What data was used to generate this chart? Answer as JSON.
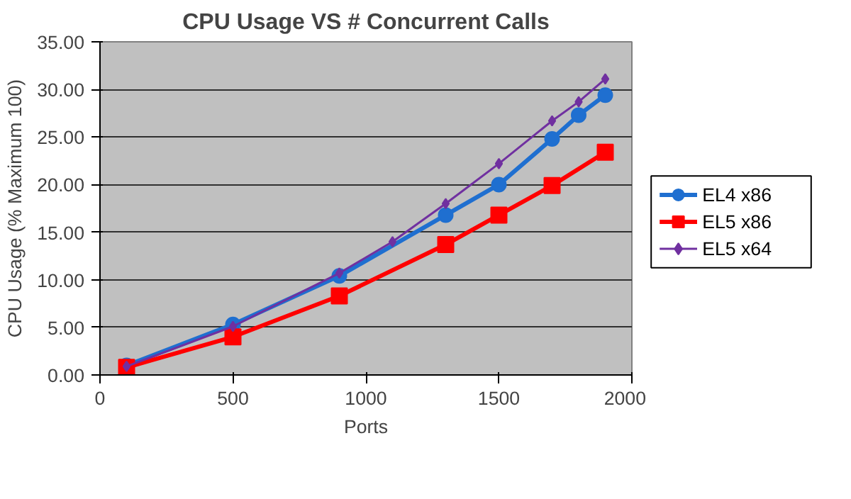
{
  "chart_data": {
    "type": "line",
    "title": "CPU Usage VS # Concurrent Calls",
    "xlabel": "Ports",
    "ylabel": "CPU Usage (% Maximum 100)",
    "xlim": [
      0,
      2000
    ],
    "xticks": [
      0,
      500,
      1000,
      1500,
      2000
    ],
    "ylim": [
      0,
      35
    ],
    "yticks": [
      {
        "value": 0,
        "label": "0.00"
      },
      {
        "value": 5,
        "label": "5.00"
      },
      {
        "value": 10,
        "label": "10.00"
      },
      {
        "value": 15,
        "label": "15.00"
      },
      {
        "value": 20,
        "label": "20.00"
      },
      {
        "value": 25,
        "label": "25.00"
      },
      {
        "value": 30,
        "label": "30.00"
      },
      {
        "value": 35,
        "label": "35.00"
      }
    ],
    "grid": "y",
    "legend": "right",
    "series": [
      {
        "name": "EL4 x86",
        "color": "#1f6fd0",
        "marker": "circle",
        "x": [
          100,
          500,
          900,
          1300,
          1500,
          1700,
          1800,
          1900
        ],
        "values": [
          1.0,
          5.3,
          10.4,
          16.8,
          20.0,
          24.8,
          27.3,
          29.4
        ]
      },
      {
        "name": "EL5 x86",
        "color": "#ff0000",
        "marker": "square",
        "x": [
          100,
          500,
          900,
          1300,
          1500,
          1700,
          1900
        ],
        "values": [
          0.8,
          4.0,
          8.3,
          13.7,
          16.8,
          19.9,
          23.4
        ]
      },
      {
        "name": "EL5 x64",
        "color": "#7030a0",
        "marker": "diamond",
        "x": [
          100,
          500,
          900,
          1100,
          1300,
          1500,
          1700,
          1800,
          1900
        ],
        "values": [
          0.9,
          5.1,
          10.7,
          14.0,
          18.0,
          22.2,
          26.7,
          28.7,
          31.1
        ]
      }
    ]
  }
}
